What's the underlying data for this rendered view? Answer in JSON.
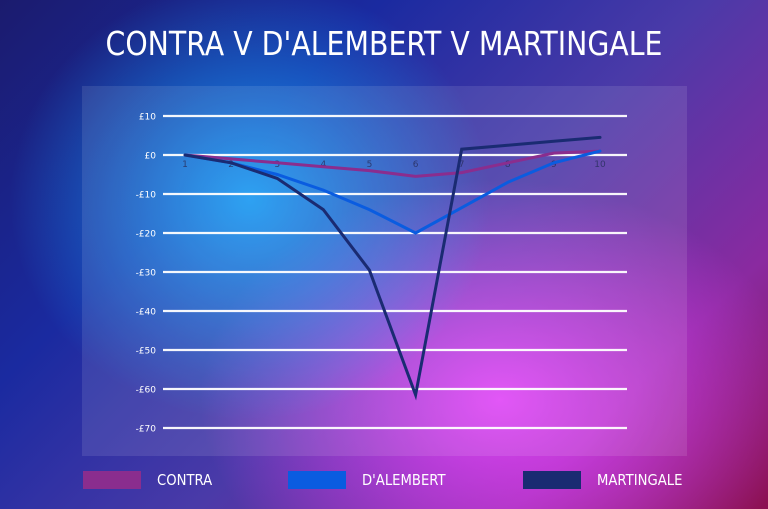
{
  "title": "CONTRA V D'ALEMBERT V MARTINGALE",
  "legend": [
    {
      "label": "CONTRA",
      "color": "#8a2d8e"
    },
    {
      "label": "D'ALEMBERT",
      "color": "#0a5ce0"
    },
    {
      "label": "MARTINGALE",
      "color": "#1a2b72"
    }
  ],
  "chart_data": {
    "type": "line",
    "title": "CONTRA V D'ALEMBERT V MARTINGALE",
    "xlabel": "",
    "ylabel": "",
    "x": [
      1,
      2,
      3,
      4,
      5,
      6,
      7,
      8,
      9,
      10
    ],
    "y_ticks": [
      "£10",
      "£0",
      "-£10",
      "-£20",
      "-£30",
      "-£40",
      "-£50",
      "-£60",
      "-£70"
    ],
    "y_tick_values": [
      10,
      0,
      -10,
      -20,
      -30,
      -40,
      -50,
      -60,
      -70
    ],
    "ylim": [
      -70,
      10
    ],
    "grid": true,
    "legend_position": "bottom",
    "series": [
      {
        "name": "CONTRA",
        "color": "#8a2d8e",
        "values": [
          0,
          -1,
          -2,
          -3,
          -4,
          -5.5,
          -4.5,
          -2,
          0.5,
          1
        ]
      },
      {
        "name": "D'ALEMBERT",
        "color": "#0a5ce0",
        "values": [
          0,
          -2,
          -5,
          -9,
          -14,
          -20,
          -13.5,
          -7,
          -2,
          1
        ]
      },
      {
        "name": "MARTINGALE",
        "color": "#1a2b72",
        "values": [
          0,
          -2,
          -6,
          -14,
          -29.5,
          -61.5,
          1.5,
          2.5,
          3.5,
          4.5
        ]
      }
    ]
  }
}
